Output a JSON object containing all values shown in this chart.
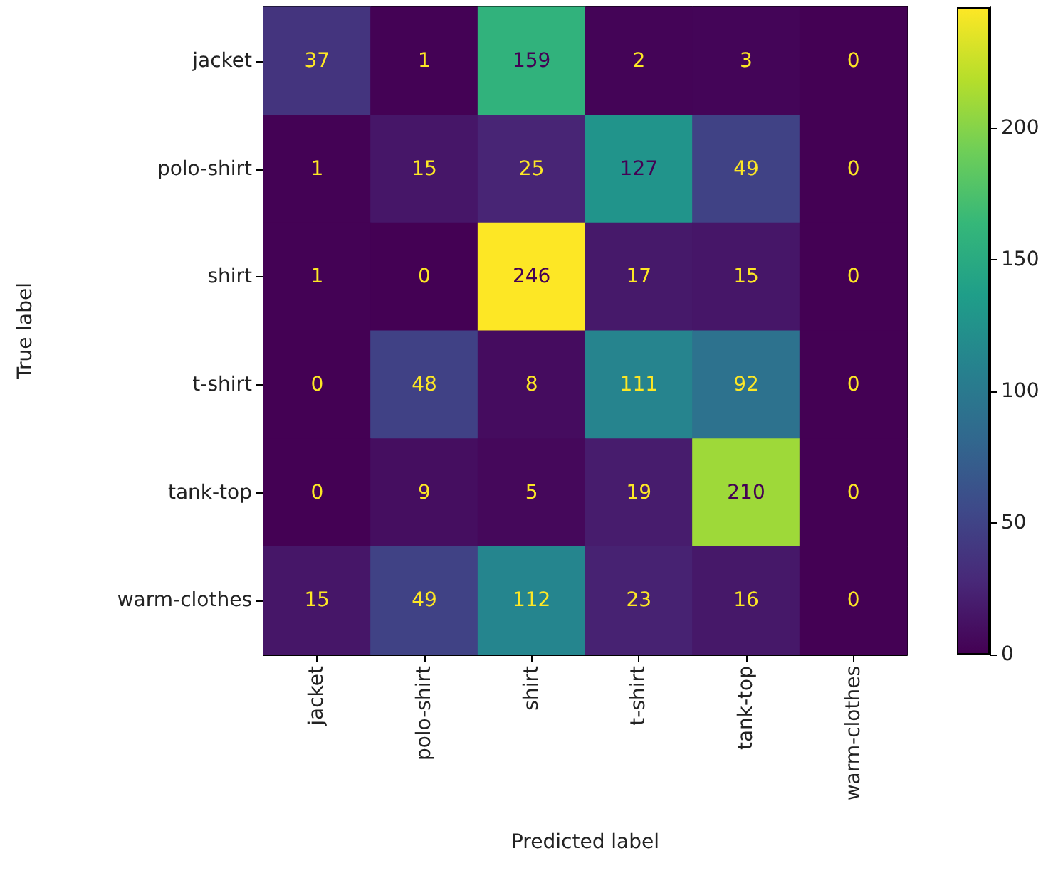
{
  "chart_data": {
    "type": "heatmap",
    "xlabel": "Predicted label",
    "ylabel": "True label",
    "categories": [
      "jacket",
      "polo-shirt",
      "shirt",
      "t-shirt",
      "tank-top",
      "warm-clothes"
    ],
    "y_categories": [
      "jacket",
      "polo-shirt",
      "shirt",
      "t-shirt",
      "tank-top",
      "warm-clothes"
    ],
    "cells": [
      [
        37,
        1,
        159,
        2,
        3,
        0
      ],
      [
        1,
        15,
        25,
        127,
        49,
        0
      ],
      [
        1,
        0,
        246,
        17,
        15,
        0
      ],
      [
        0,
        48,
        8,
        111,
        92,
        0
      ],
      [
        0,
        9,
        5,
        19,
        210,
        0
      ],
      [
        15,
        49,
        112,
        23,
        16,
        0
      ]
    ],
    "clim": [
      0,
      246
    ],
    "cticks": [
      0,
      50,
      100,
      150,
      200
    ],
    "data_labels": true,
    "grid": false
  }
}
